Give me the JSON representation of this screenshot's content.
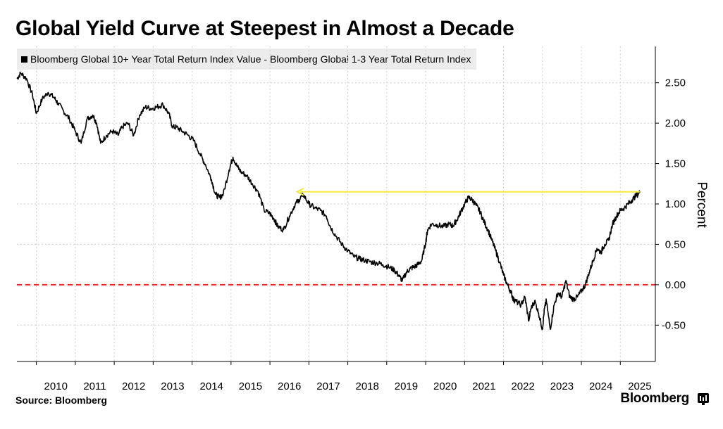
{
  "header": {
    "title": "Global Yield Curve at Steepest in Almost a Decade",
    "legend_label": "Bloomberg Global 10+ Year Total Return Index Value - Bloomberg Global 1-3 Year Total Return Index"
  },
  "footer": {
    "source": "Source: Bloomberg",
    "brand": "Bloomberg"
  },
  "icons": {
    "brand_icon": "bloomberg-terminal-icon"
  },
  "colors": {
    "series": "#000000",
    "zero_line": "#e8262c",
    "arrow": "#f5e93c",
    "grid": "#cfcfcf"
  },
  "chart_data": {
    "type": "line",
    "title": "Global Yield Curve at Steepest in Almost a Decade",
    "xlabel": "",
    "ylabel": "Percent",
    "y_axis_side": "right",
    "xlim": [
      2009.5,
      2025.9
    ],
    "ylim": [
      -0.95,
      2.95
    ],
    "x_ticks": [
      2010,
      2011,
      2012,
      2013,
      2014,
      2015,
      2016,
      2017,
      2018,
      2019,
      2020,
      2021,
      2022,
      2023,
      2024,
      2025
    ],
    "x_tick_labels": [
      "2010",
      "2011",
      "2012",
      "2013",
      "2014",
      "2015",
      "2016",
      "2017",
      "2018",
      "2019",
      "2020",
      "2021",
      "2022",
      "2023",
      "2024",
      "2025"
    ],
    "y_ticks": [
      2.5,
      2.0,
      1.5,
      1.0,
      0.5,
      0.0,
      -0.5
    ],
    "y_tick_labels": [
      "2.50",
      "2.00",
      "1.50",
      "1.00",
      "0.50",
      "0.00",
      "-0.50"
    ],
    "grid": "dotted",
    "series": [
      {
        "name": "Bloomberg Global 10+ Year Total Return Index Value - Bloomberg Global 1-3 Year Total Return Index",
        "x": [
          2009.5,
          2009.6,
          2009.75,
          2009.9,
          2010.0,
          2010.15,
          2010.3,
          2010.45,
          2010.55,
          2010.7,
          2010.85,
          2011.0,
          2011.15,
          2011.3,
          2011.45,
          2011.55,
          2011.65,
          2011.8,
          2011.95,
          2012.1,
          2012.2,
          2012.35,
          2012.5,
          2012.65,
          2012.8,
          2012.95,
          2013.1,
          2013.25,
          2013.4,
          2013.5,
          2013.6,
          2013.75,
          2013.9,
          2014.05,
          2014.2,
          2014.35,
          2014.5,
          2014.6,
          2014.7,
          2014.8,
          2014.95,
          2015.05,
          2015.15,
          2015.25,
          2015.4,
          2015.55,
          2015.7,
          2015.85,
          2016.0,
          2016.1,
          2016.2,
          2016.35,
          2016.5,
          2016.65,
          2016.75,
          2016.85,
          2017.0,
          2017.15,
          2017.3,
          2017.45,
          2017.55,
          2017.7,
          2017.85,
          2018.0,
          2018.15,
          2018.3,
          2018.45,
          2018.6,
          2018.75,
          2018.9,
          2019.05,
          2019.2,
          2019.3,
          2019.4,
          2019.5,
          2019.6,
          2019.7,
          2019.8,
          2019.9,
          2020.0,
          2020.05,
          2020.15,
          2020.3,
          2020.45,
          2020.6,
          2020.7,
          2020.8,
          2020.9,
          2021.0,
          2021.1,
          2021.2,
          2021.3,
          2021.4,
          2021.5,
          2021.6,
          2021.7,
          2021.8,
          2021.9,
          2022.0,
          2022.1,
          2022.2,
          2022.25,
          2022.3,
          2022.45,
          2022.55,
          2022.65,
          2022.7,
          2022.8,
          2022.9,
          2023.0,
          2023.05,
          2023.1,
          2023.2,
          2023.3,
          2023.4,
          2023.5,
          2023.6,
          2023.7,
          2023.8,
          2023.9,
          2024.0,
          2024.1,
          2024.2,
          2024.3,
          2024.4,
          2024.5,
          2024.6,
          2024.7,
          2024.8,
          2024.9,
          2025.0,
          2025.1,
          2025.2,
          2025.3,
          2025.4,
          2025.5
        ],
        "values": [
          2.55,
          2.62,
          2.55,
          2.35,
          2.12,
          2.3,
          2.38,
          2.32,
          2.25,
          2.15,
          2.05,
          1.9,
          1.75,
          2.05,
          2.1,
          2.0,
          1.75,
          1.85,
          1.9,
          1.85,
          1.95,
          2.0,
          1.85,
          2.1,
          2.2,
          2.18,
          2.2,
          2.23,
          2.12,
          1.95,
          1.95,
          1.9,
          1.85,
          1.78,
          1.62,
          1.48,
          1.3,
          1.12,
          1.08,
          1.12,
          1.42,
          1.58,
          1.47,
          1.4,
          1.35,
          1.25,
          1.15,
          0.92,
          0.88,
          0.82,
          0.72,
          0.68,
          0.85,
          1.0,
          1.05,
          1.12,
          1.0,
          0.95,
          0.92,
          0.85,
          0.72,
          0.6,
          0.5,
          0.42,
          0.35,
          0.32,
          0.3,
          0.28,
          0.27,
          0.25,
          0.22,
          0.18,
          0.12,
          0.05,
          0.15,
          0.2,
          0.22,
          0.25,
          0.3,
          0.52,
          0.68,
          0.75,
          0.74,
          0.72,
          0.75,
          0.73,
          0.8,
          0.9,
          1.0,
          1.08,
          1.05,
          0.98,
          0.9,
          0.78,
          0.68,
          0.55,
          0.42,
          0.28,
          0.12,
          0.0,
          -0.1,
          -0.18,
          -0.2,
          -0.25,
          -0.15,
          -0.45,
          -0.3,
          -0.2,
          -0.35,
          -0.55,
          -0.3,
          -0.2,
          -0.55,
          -0.25,
          -0.1,
          -0.15,
          0.05,
          -0.15,
          -0.18,
          -0.15,
          -0.08,
          0.0,
          0.15,
          0.3,
          0.45,
          0.4,
          0.5,
          0.55,
          0.75,
          0.85,
          0.92,
          0.95,
          1.0,
          1.05,
          1.1,
          1.14
        ]
      }
    ],
    "reference_lines": [
      {
        "name": "zero-line",
        "y": 0.0,
        "style": "dashed"
      }
    ],
    "annotations": [
      {
        "type": "arrow",
        "y": 1.15,
        "x_from": 2025.5,
        "x_to": 2016.7
      }
    ]
  }
}
